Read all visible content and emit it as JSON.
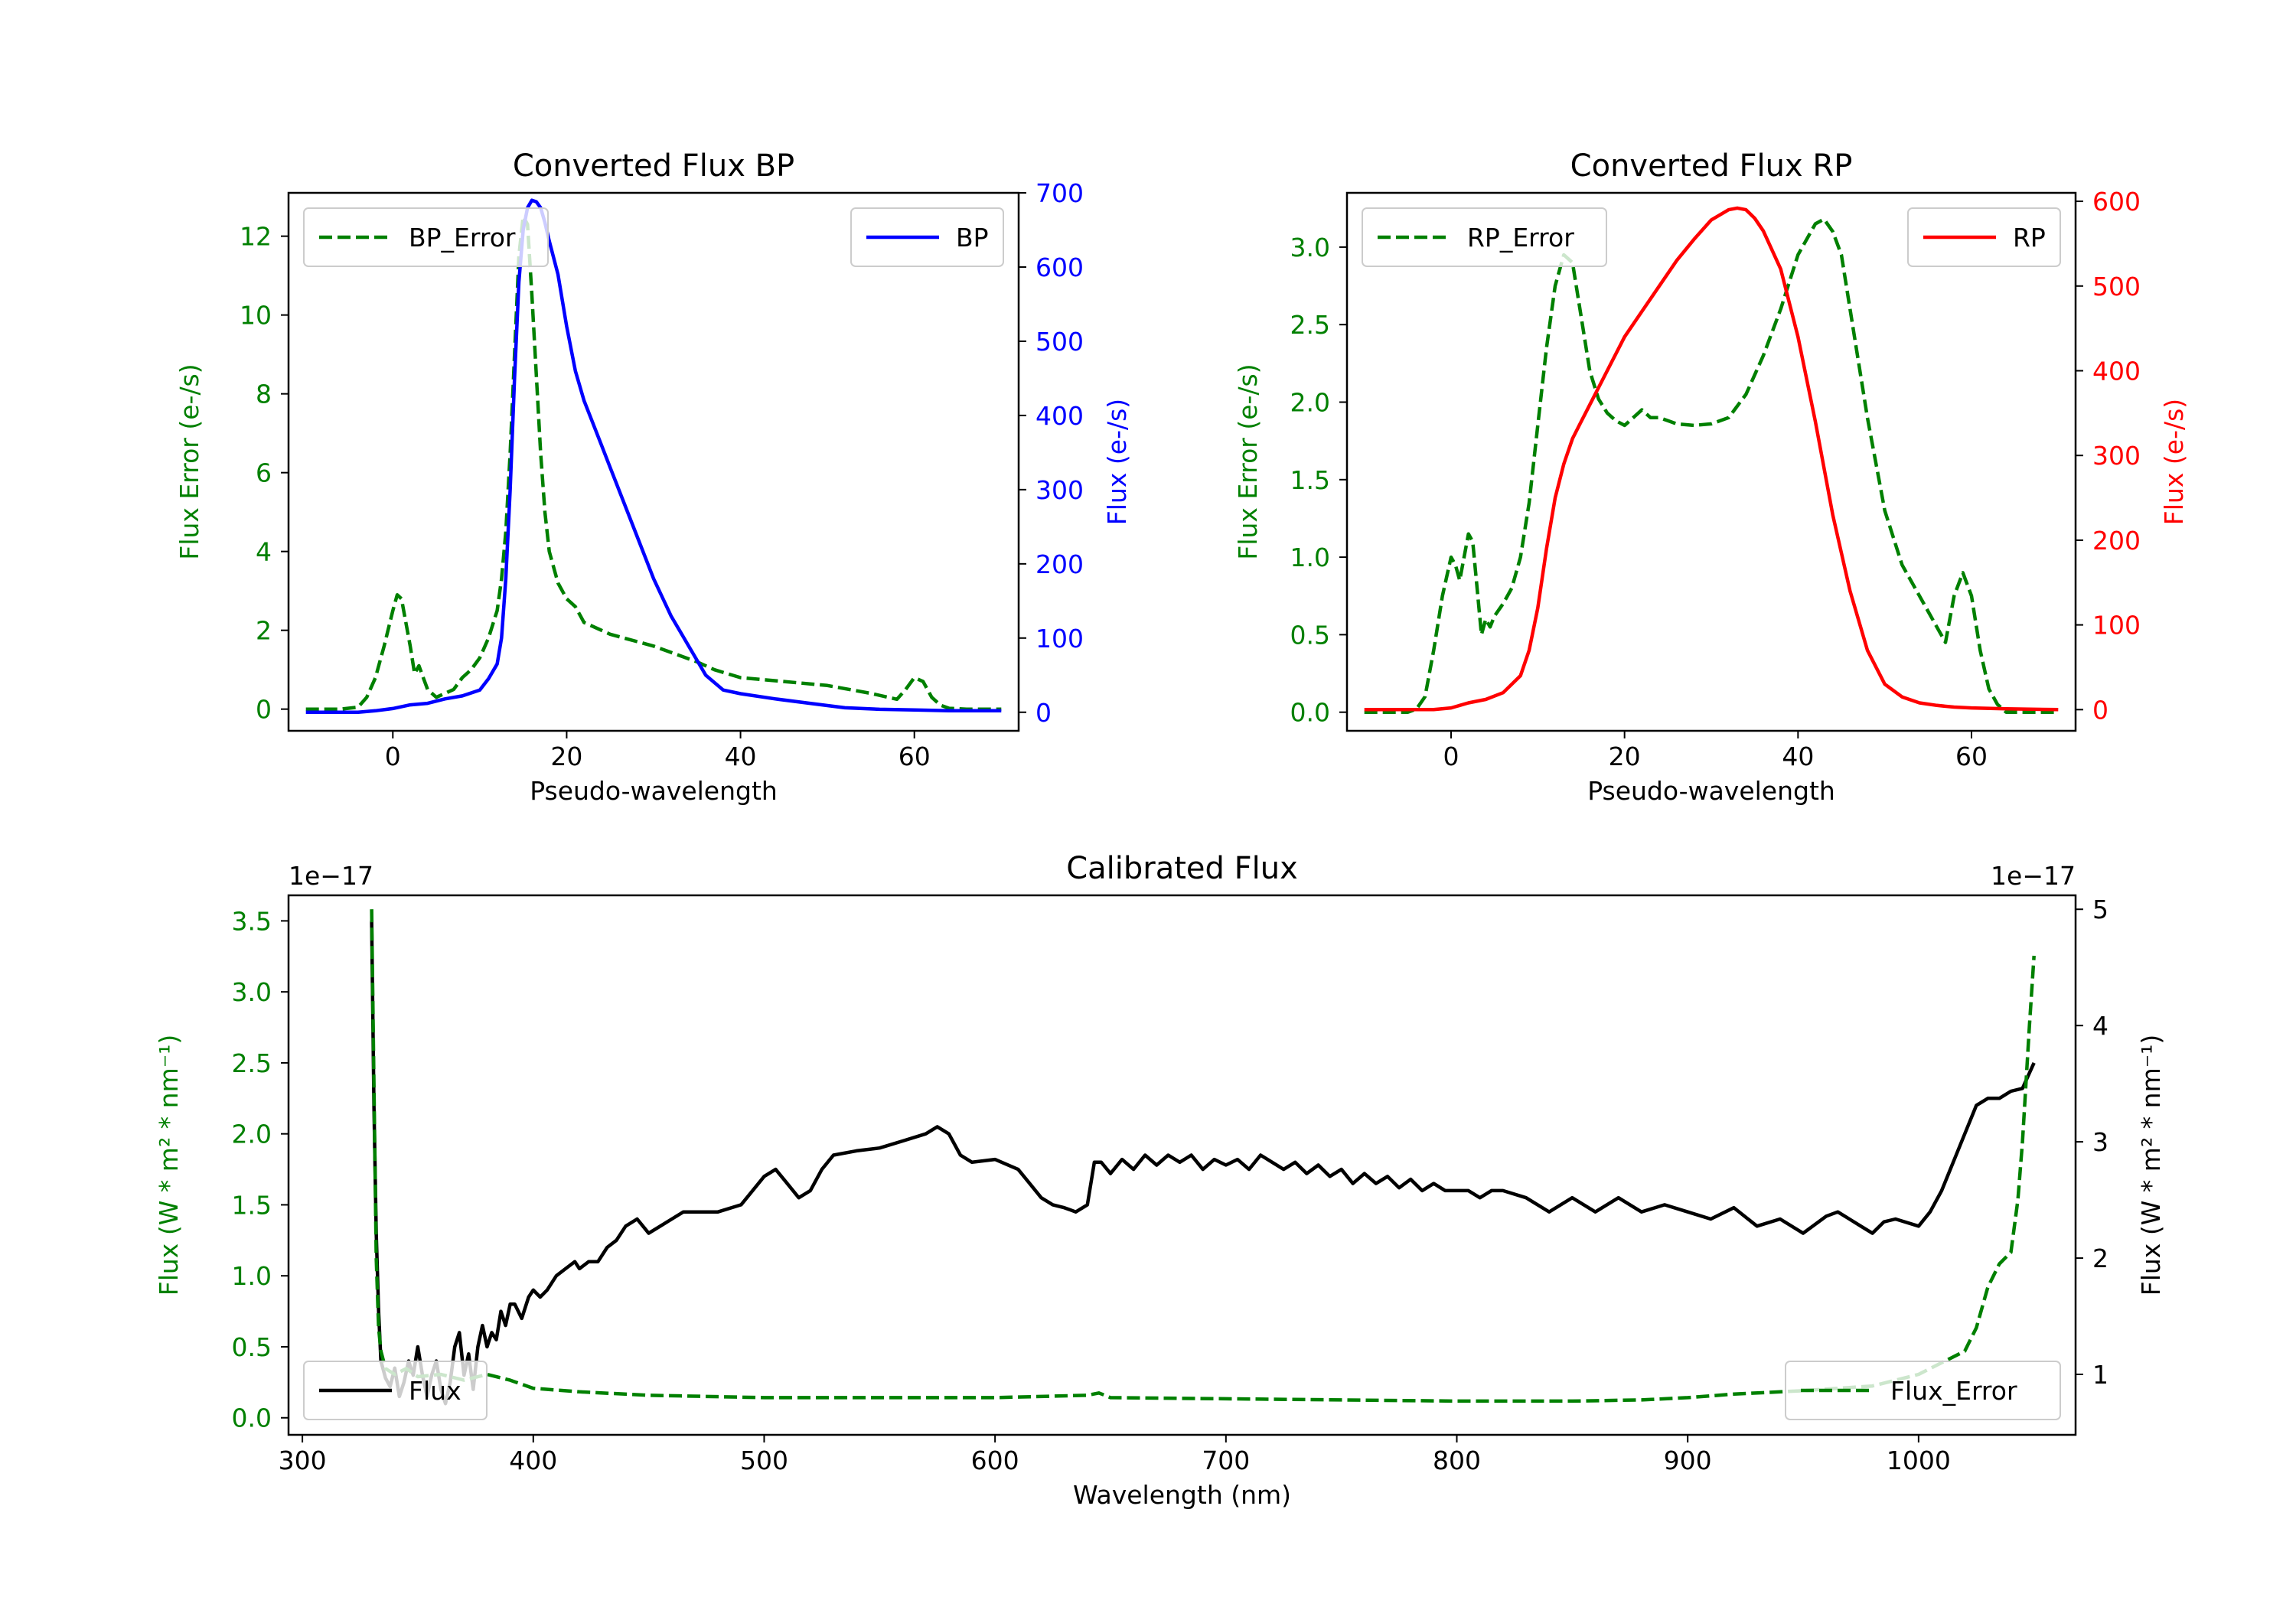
{
  "figure": {
    "colors": {
      "green": "#008000",
      "blue": "#0000ff",
      "red": "#ff0000",
      "black": "#000000"
    }
  },
  "chart_data": [
    {
      "id": "bp",
      "type": "line",
      "title": "Converted Flux BP",
      "xlabel": "Pseudo-wavelength",
      "ylabel_left": "Flux Error (e-/s)",
      "ylabel_right": "Flux (e-/s)",
      "xlim": [
        -12,
        72
      ],
      "ylim_left": [
        -0.55,
        13.1
      ],
      "ylim_right": [
        -25,
        700
      ],
      "xticks": [
        0,
        20,
        40,
        60
      ],
      "yticks_left": [
        0,
        2,
        4,
        6,
        8,
        10,
        12
      ],
      "yticks_right": [
        0,
        100,
        200,
        300,
        400,
        500,
        600,
        700
      ],
      "left_color": "#008000",
      "right_color": "#0000ff",
      "legend_left": {
        "label": "BP_Error",
        "placement": "upper left"
      },
      "legend_right": {
        "label": "BP",
        "placement": "upper right"
      },
      "series": [
        {
          "name": "BP_Error",
          "axis": "left",
          "style": "dashed",
          "color": "#008000",
          "x": [
            -10,
            -6,
            -4,
            -3,
            -2,
            -1,
            0,
            0.5,
            1,
            2,
            2.5,
            3,
            3.5,
            4,
            5,
            6,
            7,
            8,
            9,
            10,
            11,
            12,
            12.5,
            13,
            13.5,
            14,
            14.5,
            15,
            15.5,
            16,
            16.5,
            17,
            17.5,
            18,
            19,
            20,
            21,
            22,
            25,
            30,
            35,
            37,
            40,
            45,
            50,
            55,
            58,
            59,
            60,
            61,
            62,
            63,
            64,
            66,
            70
          ],
          "values": [
            0,
            0,
            0.05,
            0.3,
            0.8,
            1.6,
            2.5,
            2.9,
            2.8,
            1.6,
            0.9,
            1.1,
            0.8,
            0.5,
            0.3,
            0.4,
            0.5,
            0.8,
            1.0,
            1.3,
            1.8,
            2.5,
            3.3,
            4.5,
            6.5,
            9.0,
            11.5,
            12.5,
            12.3,
            10.5,
            8.5,
            6.5,
            5.0,
            4.0,
            3.2,
            2.8,
            2.6,
            2.2,
            1.9,
            1.6,
            1.2,
            1.0,
            0.8,
            0.7,
            0.6,
            0.4,
            0.25,
            0.5,
            0.8,
            0.7,
            0.3,
            0.1,
            0.02,
            0,
            0
          ]
        },
        {
          "name": "BP",
          "axis": "right",
          "style": "solid",
          "color": "#0000ff",
          "x": [
            -10,
            -4,
            -2,
            0,
            2,
            4,
            6,
            8,
            10,
            11,
            12,
            12.5,
            13,
            13.5,
            14,
            14.5,
            15,
            15.5,
            16,
            16.5,
            17,
            17.5,
            18,
            19,
            20,
            21,
            22,
            23,
            24,
            25,
            26,
            28,
            30,
            32,
            34,
            36,
            38,
            40,
            44,
            48,
            52,
            56,
            60,
            64,
            70
          ],
          "values": [
            0,
            0,
            2,
            5,
            10,
            12,
            18,
            22,
            30,
            45,
            65,
            100,
            180,
            300,
            450,
            580,
            650,
            680,
            690,
            688,
            680,
            660,
            635,
            590,
            520,
            460,
            420,
            390,
            360,
            330,
            300,
            240,
            180,
            130,
            90,
            50,
            30,
            25,
            18,
            12,
            6,
            4,
            3,
            2,
            2
          ]
        }
      ]
    },
    {
      "id": "rp",
      "type": "line",
      "title": "Converted Flux RP",
      "xlabel": "Pseudo-wavelength",
      "ylabel_left": "Flux Error (e-/s)",
      "ylabel_right": "Flux (e-/s)",
      "xlim": [
        -12,
        72
      ],
      "ylim_left": [
        -0.12,
        3.35
      ],
      "ylim_right": [
        -25,
        610
      ],
      "xticks": [
        0,
        20,
        40,
        60
      ],
      "yticks_left": [
        0.0,
        0.5,
        1.0,
        1.5,
        2.0,
        2.5,
        3.0
      ],
      "yticks_right": [
        0,
        100,
        200,
        300,
        400,
        500,
        600
      ],
      "left_color": "#008000",
      "right_color": "#ff0000",
      "legend_left": {
        "label": "RP_Error",
        "placement": "upper left"
      },
      "legend_right": {
        "label": "RP",
        "placement": "upper right"
      },
      "series": [
        {
          "name": "RP_Error",
          "axis": "left",
          "style": "dashed",
          "color": "#008000",
          "x": [
            -10,
            -5,
            -4,
            -3,
            -2,
            -1,
            0,
            0.5,
            1,
            1.5,
            2,
            2.5,
            3,
            3.5,
            4,
            4.5,
            5,
            6,
            7,
            8,
            9,
            10,
            11,
            12,
            13,
            14,
            15,
            16,
            17,
            18,
            19,
            20,
            21,
            22,
            23,
            24,
            25,
            26,
            28,
            30,
            32,
            34,
            36,
            38,
            40,
            42,
            43,
            44,
            45,
            46,
            48,
            50,
            52,
            54,
            56,
            57,
            58,
            59,
            60,
            61,
            62,
            63,
            64,
            66,
            70
          ],
          "values": [
            0,
            0,
            0.02,
            0.1,
            0.4,
            0.75,
            1.0,
            0.95,
            0.85,
            1.0,
            1.15,
            1.1,
            0.8,
            0.5,
            0.6,
            0.55,
            0.62,
            0.7,
            0.8,
            1.0,
            1.35,
            1.85,
            2.35,
            2.75,
            2.95,
            2.9,
            2.55,
            2.2,
            2.02,
            1.93,
            1.88,
            1.85,
            1.9,
            1.95,
            1.9,
            1.9,
            1.88,
            1.86,
            1.85,
            1.86,
            1.9,
            2.05,
            2.3,
            2.6,
            2.95,
            3.15,
            3.18,
            3.1,
            2.95,
            2.6,
            1.9,
            1.3,
            0.95,
            0.75,
            0.55,
            0.45,
            0.75,
            0.9,
            0.75,
            0.4,
            0.15,
            0.05,
            0,
            0,
            0
          ]
        },
        {
          "name": "RP",
          "axis": "right",
          "style": "solid",
          "color": "#ff0000",
          "x": [
            -10,
            -4,
            -2,
            0,
            2,
            4,
            6,
            8,
            9,
            10,
            11,
            12,
            13,
            14,
            15,
            16,
            18,
            20,
            22,
            24,
            26,
            28,
            30,
            32,
            33,
            34,
            35,
            36,
            38,
            40,
            42,
            44,
            46,
            48,
            50,
            52,
            54,
            56,
            58,
            60,
            64,
            70
          ],
          "values": [
            0,
            0,
            0,
            2,
            8,
            12,
            20,
            40,
            70,
            120,
            190,
            250,
            290,
            320,
            340,
            360,
            400,
            440,
            470,
            500,
            530,
            555,
            578,
            590,
            592,
            590,
            580,
            565,
            520,
            440,
            340,
            230,
            140,
            70,
            30,
            15,
            8,
            5,
            3,
            2,
            1,
            0
          ]
        }
      ]
    },
    {
      "id": "cal",
      "type": "line",
      "title": "Calibrated Flux",
      "xlabel": "Wavelength (nm)",
      "ylabel_left": "Flux (W * m² * nm⁻¹)",
      "ylabel_right": "Flux (W * m² * nm⁻¹)",
      "offset_left": "1e−17",
      "offset_right": "1e−17",
      "xlim": [
        294,
        1068
      ],
      "ylim_left": [
        -0.12,
        3.68
      ],
      "ylim_right": [
        0.48,
        5.12
      ],
      "xticks": [
        300,
        400,
        500,
        600,
        700,
        800,
        900,
        1000
      ],
      "yticks_left": [
        0.0,
        0.5,
        1.0,
        1.5,
        2.0,
        2.5,
        3.0,
        3.5
      ],
      "yticks_right": [
        1,
        2,
        3,
        4,
        5
      ],
      "left_color": "#008000",
      "right_color": "#000000",
      "legend_left": {
        "label": "Flux",
        "placement": "lower left"
      },
      "legend_right": {
        "label": "Flux_Error",
        "placement": "lower right"
      },
      "series": [
        {
          "name": "Flux",
          "axis": "left",
          "style": "solid",
          "color": "#000000",
          "x": [
            330,
            331,
            332,
            333,
            334,
            336,
            338,
            340,
            342,
            344,
            346,
            348,
            350,
            352,
            354,
            356,
            358,
            360,
            362,
            364,
            366,
            368,
            370,
            372,
            374,
            376,
            378,
            380,
            382,
            384,
            386,
            388,
            390,
            392,
            395,
            398,
            400,
            403,
            406,
            410,
            414,
            418,
            420,
            424,
            428,
            432,
            436,
            440,
            445,
            450,
            455,
            460,
            465,
            470,
            480,
            490,
            500,
            505,
            510,
            515,
            520,
            525,
            530,
            540,
            550,
            560,
            570,
            575,
            580,
            585,
            590,
            600,
            610,
            615,
            620,
            625,
            630,
            635,
            640,
            643,
            646,
            650,
            655,
            660,
            665,
            670,
            675,
            680,
            685,
            690,
            695,
            700,
            705,
            710,
            715,
            720,
            725,
            730,
            735,
            740,
            745,
            750,
            755,
            760,
            765,
            770,
            775,
            780,
            785,
            790,
            795,
            800,
            805,
            810,
            815,
            820,
            830,
            840,
            850,
            860,
            870,
            880,
            890,
            900,
            910,
            920,
            930,
            940,
            950,
            960,
            965,
            970,
            975,
            980,
            985,
            990,
            1000,
            1005,
            1010,
            1015,
            1020,
            1025,
            1030,
            1035,
            1040,
            1045,
            1050
          ],
          "values": [
            3.5,
            2.2,
            1.3,
            0.75,
            0.4,
            0.28,
            0.22,
            0.35,
            0.15,
            0.25,
            0.4,
            0.3,
            0.5,
            0.3,
            0.15,
            0.3,
            0.4,
            0.2,
            0.1,
            0.25,
            0.5,
            0.6,
            0.3,
            0.45,
            0.2,
            0.5,
            0.65,
            0.5,
            0.6,
            0.55,
            0.75,
            0.65,
            0.8,
            0.8,
            0.7,
            0.85,
            0.9,
            0.85,
            0.9,
            1.0,
            1.05,
            1.1,
            1.05,
            1.1,
            1.1,
            1.2,
            1.25,
            1.35,
            1.4,
            1.3,
            1.35,
            1.4,
            1.45,
            1.45,
            1.45,
            1.5,
            1.7,
            1.75,
            1.65,
            1.55,
            1.6,
            1.75,
            1.85,
            1.88,
            1.9,
            1.95,
            2.0,
            2.05,
            2.0,
            1.85,
            1.8,
            1.82,
            1.75,
            1.65,
            1.55,
            1.5,
            1.48,
            1.45,
            1.5,
            1.8,
            1.8,
            1.72,
            1.82,
            1.75,
            1.85,
            1.78,
            1.85,
            1.8,
            1.85,
            1.75,
            1.82,
            1.78,
            1.82,
            1.75,
            1.85,
            1.8,
            1.75,
            1.8,
            1.72,
            1.78,
            1.7,
            1.75,
            1.65,
            1.72,
            1.65,
            1.7,
            1.62,
            1.68,
            1.6,
            1.65,
            1.6,
            1.6,
            1.6,
            1.55,
            1.6,
            1.6,
            1.55,
            1.45,
            1.55,
            1.45,
            1.55,
            1.45,
            1.5,
            1.45,
            1.4,
            1.48,
            1.35,
            1.4,
            1.3,
            1.42,
            1.45,
            1.4,
            1.35,
            1.3,
            1.38,
            1.4,
            1.35,
            1.45,
            1.6,
            1.8,
            2.0,
            2.2,
            2.25,
            2.25,
            2.3,
            2.32,
            2.5
          ]
        },
        {
          "name": "Flux_Error",
          "axis": "right",
          "style": "dashed",
          "color": "#008000",
          "x": [
            330,
            331,
            332,
            333,
            334,
            336,
            340,
            345,
            350,
            360,
            370,
            380,
            390,
            400,
            420,
            450,
            500,
            550,
            600,
            640,
            645,
            650,
            700,
            750,
            800,
            850,
            880,
            900,
            920,
            950,
            980,
            1000,
            1010,
            1020,
            1025,
            1030,
            1035,
            1040,
            1043,
            1045,
            1048,
            1050
          ],
          "values": [
            5.0,
            3.5,
            2.0,
            1.4,
            1.2,
            1.05,
            1.0,
            1.05,
            0.98,
            1.0,
            0.95,
            1.0,
            0.95,
            0.88,
            0.85,
            0.82,
            0.8,
            0.8,
            0.8,
            0.82,
            0.84,
            0.8,
            0.79,
            0.78,
            0.77,
            0.77,
            0.78,
            0.8,
            0.83,
            0.86,
            0.9,
            1.0,
            1.1,
            1.2,
            1.4,
            1.75,
            1.95,
            2.05,
            2.5,
            3.0,
            4.0,
            4.6
          ]
        }
      ]
    }
  ]
}
